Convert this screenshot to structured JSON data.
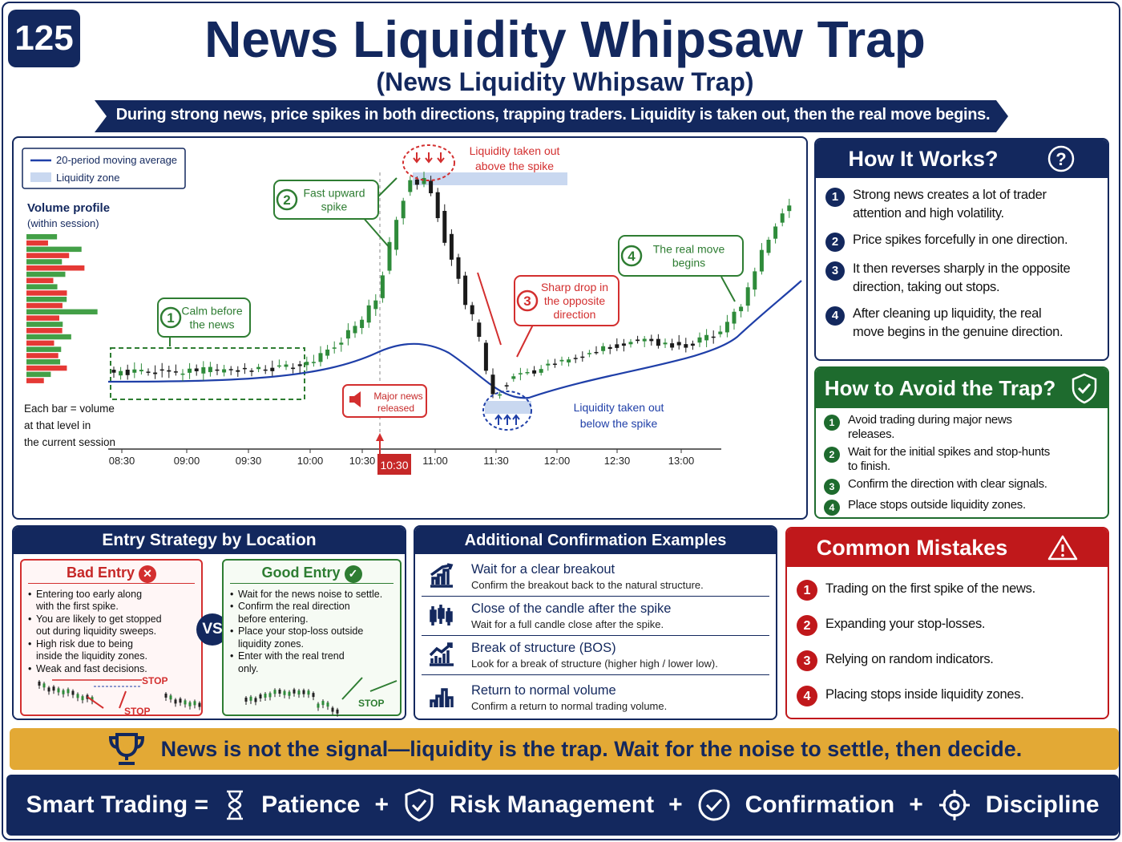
{
  "badge": "125",
  "header": {
    "title": "News Liquidity Whipsaw Trap",
    "subtitle": "(News Liquidity Whipsaw Trap)",
    "banner": "During strong news, price spikes in both directions, trapping traders. Liquidity is taken out, then the real move begins."
  },
  "chart": {
    "legend": [
      "20-period moving average",
      "Liquidity zone"
    ],
    "volume_title": "Volume profile",
    "volume_subtitle": "(within session)",
    "volume_note": [
      "Each bar = volume",
      "at that level in",
      "the current session"
    ],
    "times": [
      "08:30",
      "09:00",
      "09:30",
      "10:00",
      "10:30",
      "11:00",
      "11:30",
      "12:00",
      "12:30",
      "13:00"
    ],
    "news_time": "10:30",
    "news": [
      "Major news",
      "released"
    ],
    "liquidity_above": [
      "Liquidity taken out",
      "above the spike"
    ],
    "liquidity_below": [
      "Liquidity taken out",
      "below the spike"
    ],
    "steps": [
      {
        "num": "1",
        "lines": [
          "Calm before",
          "the news"
        ]
      },
      {
        "num": "2",
        "lines": [
          "Fast upward",
          "spike"
        ]
      },
      {
        "num": "3",
        "lines": [
          "Sharp drop in",
          "the opposite",
          "direction"
        ]
      },
      {
        "num": "4",
        "lines": [
          "The real move",
          "begins"
        ]
      }
    ]
  },
  "how_it_works": {
    "title": "How It Works?",
    "items": [
      {
        "num": "1",
        "lines": [
          "Strong news creates a lot of trader",
          "attention and high volatility."
        ]
      },
      {
        "num": "2",
        "lines": [
          "Price spikes forcefully in one direction."
        ]
      },
      {
        "num": "3",
        "lines": [
          "It then reverses sharply in the opposite",
          "direction, taking out stops."
        ]
      },
      {
        "num": "4",
        "lines": [
          "After cleaning up liquidity, the real",
          "move begins in the genuine direction."
        ]
      }
    ]
  },
  "avoid": {
    "title": "How to Avoid the Trap?",
    "items": [
      {
        "num": "1",
        "lines": [
          "Avoid trading during major news",
          "releases."
        ]
      },
      {
        "num": "2",
        "lines": [
          "Wait for the initial spikes and stop-hunts",
          "to finish."
        ]
      },
      {
        "num": "3",
        "lines": [
          "Confirm the direction with clear signals."
        ]
      },
      {
        "num": "4",
        "lines": [
          "Place stops outside liquidity zones."
        ]
      }
    ]
  },
  "entry": {
    "title": "Entry Strategy by Location",
    "vs": "VS",
    "bad": {
      "title": "Bad Entry",
      "items": [
        [
          "Entering too early along",
          "with the first spike."
        ],
        [
          "You are likely to get stopped",
          "out during liquidity sweeps."
        ],
        [
          "High risk due to being",
          "inside the liquidity zones."
        ],
        [
          "Weak and fast decisions."
        ]
      ],
      "stops": [
        "STOP",
        "STOP"
      ]
    },
    "good": {
      "title": "Good Entry",
      "items": [
        [
          "Wait for the news noise to settle."
        ],
        [
          "Confirm the real direction",
          "before entering."
        ],
        [
          "Place your stop-loss outside",
          "liquidity zones."
        ],
        [
          "Enter with the real trend",
          "only."
        ]
      ],
      "stop": "STOP"
    }
  },
  "confirmation": {
    "title": "Additional Confirmation Examples",
    "items": [
      {
        "title": "Wait for a clear breakout",
        "desc": "Confirm the breakout back to the natural structure."
      },
      {
        "title": "Close of the candle after the spike",
        "desc": "Wait for a full candle close after the spike."
      },
      {
        "title": "Break of structure (BOS)",
        "desc": "Look for a break of structure (higher high / lower low)."
      },
      {
        "title": "Return to normal volume",
        "desc": "Confirm a return to normal trading volume."
      }
    ]
  },
  "mistakes": {
    "title": "Common Mistakes",
    "items": [
      {
        "num": "1",
        "text": "Trading on the first spike of the news."
      },
      {
        "num": "2",
        "text": "Expanding your stop-losses."
      },
      {
        "num": "3",
        "text": "Relying on random indicators."
      },
      {
        "num": "4",
        "text": "Placing stops inside liquidity zones."
      }
    ]
  },
  "quote": "News is not the signal—liquidity is the trap. Wait for the noise to settle, then decide.",
  "formula": {
    "lead": "Smart Trading =",
    "terms": [
      "Patience",
      "Risk Management",
      "Confirmation",
      "Discipline"
    ],
    "plus": "+"
  }
}
